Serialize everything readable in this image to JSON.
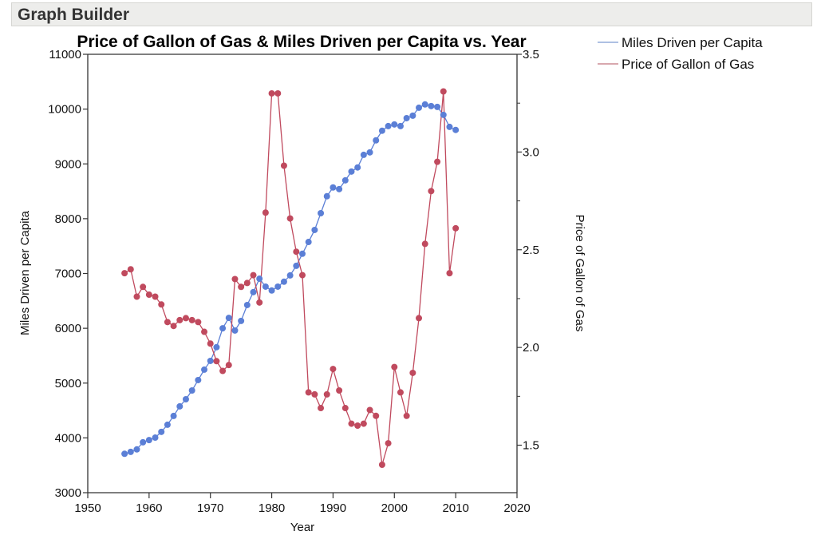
{
  "window": {
    "title": "Graph Builder"
  },
  "colors": {
    "miles": "#5b7fd6",
    "price": "#c04a5e",
    "miles_legend_line": "#7e9bd2",
    "price_legend_line": "#c0737e",
    "axis": "#333333"
  },
  "chart_data": {
    "type": "line",
    "title": "Price of Gallon of Gas & Miles Driven per Capita vs. Year",
    "xlabel": "Year",
    "ylabel": "Miles Driven per Capita",
    "y2label": "Price of Gallon of Gas",
    "xlim": [
      1950,
      2020
    ],
    "ylim": [
      3000,
      11000
    ],
    "y2lim": [
      1.257,
      3.5
    ],
    "x_ticks": [
      "1950",
      "1960",
      "1970",
      "1980",
      "1990",
      "2000",
      "2010",
      "2020"
    ],
    "y_ticks": [
      "3000",
      "4000",
      "5000",
      "6000",
      "7000",
      "8000",
      "9000",
      "10000",
      "11000"
    ],
    "y2_ticks": [
      "1.5",
      "2.0",
      "2.5",
      "3.0",
      "3.5"
    ],
    "y2_minor_ticks": [
      1.75,
      2.25,
      2.75,
      3.25
    ],
    "grid": false,
    "legend_position": "top-right",
    "legend": [
      "Miles Driven per Capita",
      "Price of Gallon of Gas"
    ],
    "x": [
      1956,
      1957,
      1958,
      1959,
      1960,
      1961,
      1962,
      1963,
      1964,
      1965,
      1966,
      1967,
      1968,
      1969,
      1970,
      1971,
      1972,
      1973,
      1974,
      1975,
      1976,
      1977,
      1978,
      1979,
      1980,
      1981,
      1982,
      1983,
      1984,
      1985,
      1986,
      1987,
      1988,
      1989,
      1990,
      1991,
      1992,
      1993,
      1994,
      1995,
      1996,
      1997,
      1998,
      1999,
      2000,
      2001,
      2002,
      2003,
      2004,
      2005,
      2006,
      2007,
      2008,
      2009,
      2010
    ],
    "series": [
      {
        "name": "Miles Driven per Capita",
        "axis": "left",
        "values": [
          3710,
          3745,
          3790,
          3920,
          3960,
          4005,
          4110,
          4240,
          4400,
          4575,
          4705,
          4865,
          5055,
          5245,
          5405,
          5655,
          6000,
          6190,
          5960,
          6135,
          6425,
          6660,
          6905,
          6760,
          6690,
          6760,
          6850,
          6965,
          7140,
          7360,
          7575,
          7795,
          8100,
          8410,
          8570,
          8540,
          8700,
          8860,
          8935,
          9165,
          9210,
          9430,
          9605,
          9690,
          9720,
          9690,
          9835,
          9880,
          10025,
          10085,
          10055,
          10040,
          9895,
          9675,
          9620
        ]
      },
      {
        "name": "Price of Gallon of Gas",
        "axis": "right",
        "values": [
          2.38,
          2.4,
          2.26,
          2.31,
          2.27,
          2.26,
          2.22,
          2.13,
          2.11,
          2.14,
          2.15,
          2.14,
          2.13,
          2.08,
          2.02,
          1.93,
          1.88,
          1.91,
          2.35,
          2.31,
          2.33,
          2.37,
          2.23,
          2.69,
          3.3,
          3.3,
          2.93,
          2.66,
          2.49,
          2.37,
          1.77,
          1.76,
          1.69,
          1.76,
          1.89,
          1.78,
          1.69,
          1.61,
          1.6,
          1.61,
          1.68,
          1.65,
          1.4,
          1.51,
          1.9,
          1.77,
          1.65,
          1.87,
          2.15,
          2.53,
          2.8,
          2.95,
          3.31,
          2.38,
          2.61
        ]
      }
    ]
  }
}
